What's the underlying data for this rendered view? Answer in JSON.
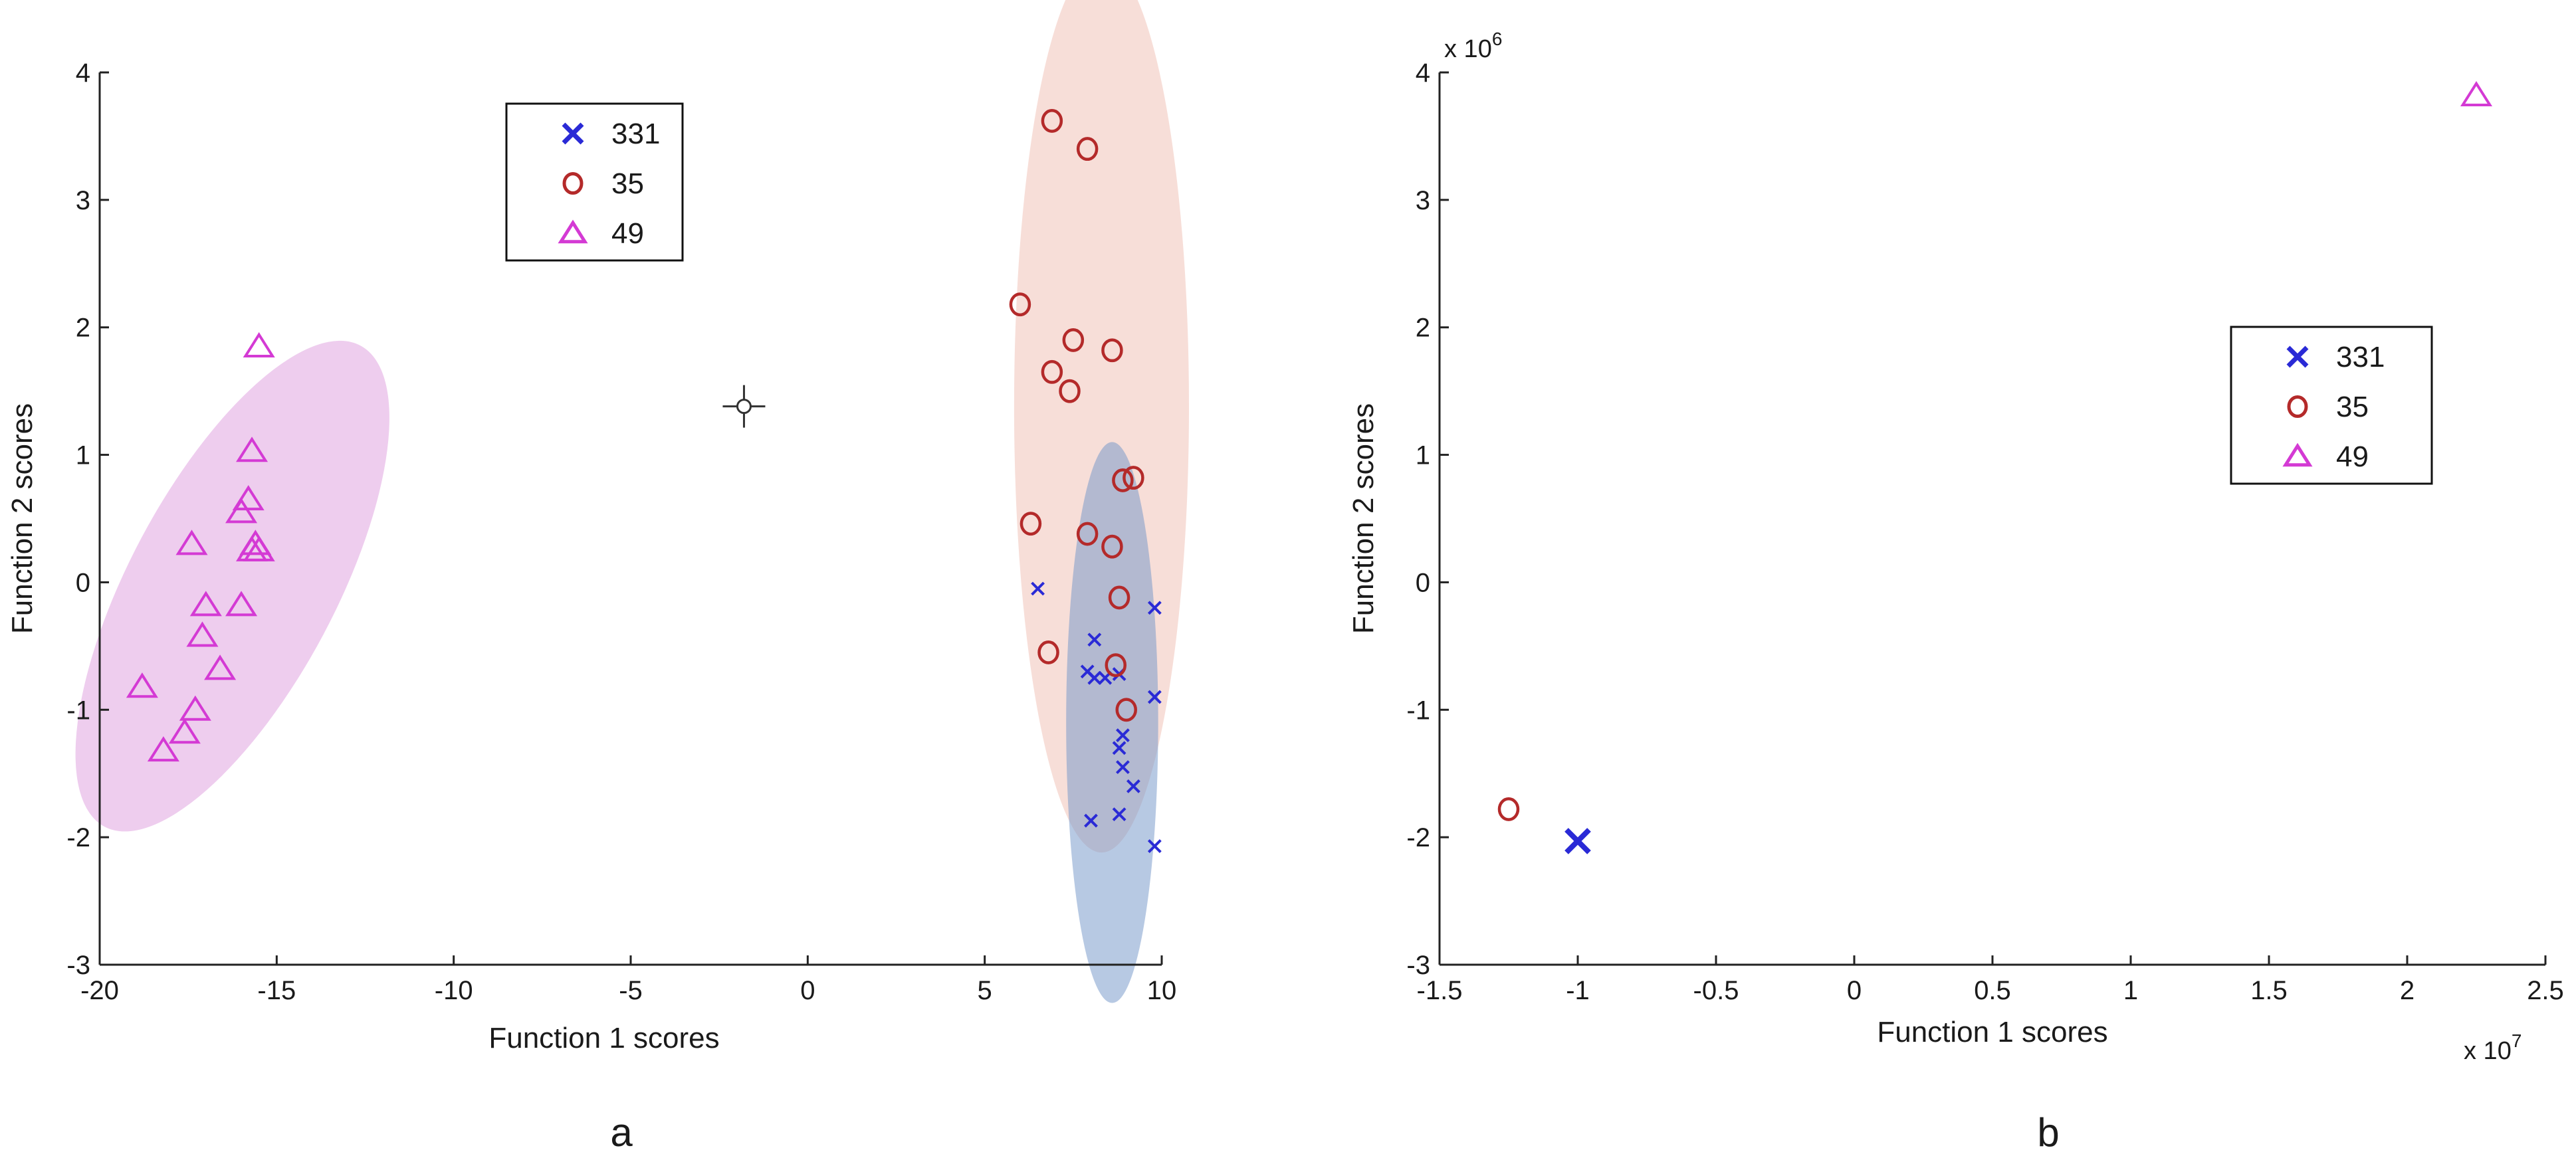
{
  "chart_data": [
    {
      "panel_label": "a",
      "type": "scatter",
      "xlabel": "Function 1 scores",
      "ylabel": "Function 2 scores",
      "xlim": [
        -20,
        10
      ],
      "ylim": [
        -3,
        4
      ],
      "xticks": [
        -20,
        -15,
        -10,
        -5,
        0,
        5,
        10
      ],
      "yticks": [
        -3,
        -2,
        -1,
        0,
        1,
        2,
        3,
        4
      ],
      "grid": false,
      "legend_position": "top-center",
      "series": [
        {
          "name": "331",
          "marker": "x",
          "color": "#2a2ad6",
          "points": [
            [
              6.5,
              -0.05
            ],
            [
              8.1,
              -0.45
            ],
            [
              9.8,
              -0.2
            ],
            [
              7.9,
              -0.7
            ],
            [
              8.1,
              -0.75
            ],
            [
              8.4,
              -0.75
            ],
            [
              8.8,
              -0.72
            ],
            [
              9.8,
              -0.9
            ],
            [
              8.9,
              -1.2
            ],
            [
              8.8,
              -1.3
            ],
            [
              8.9,
              -1.45
            ],
            [
              9.2,
              -1.6
            ],
            [
              8.0,
              -1.87
            ],
            [
              8.8,
              -1.82
            ],
            [
              9.8,
              -2.07
            ]
          ]
        },
        {
          "name": "35",
          "marker": "o",
          "color": "#b42a2a",
          "points": [
            [
              6.9,
              3.62
            ],
            [
              7.9,
              3.4
            ],
            [
              6.0,
              2.18
            ],
            [
              7.5,
              1.9
            ],
            [
              8.6,
              1.82
            ],
            [
              6.9,
              1.65
            ],
            [
              7.4,
              1.5
            ],
            [
              8.9,
              0.8
            ],
            [
              9.2,
              0.82
            ],
            [
              6.3,
              0.46
            ],
            [
              7.9,
              0.38
            ],
            [
              8.6,
              0.28
            ],
            [
              8.8,
              -0.12
            ],
            [
              6.8,
              -0.55
            ],
            [
              8.7,
              -0.65
            ],
            [
              9.0,
              -1.0
            ]
          ]
        },
        {
          "name": "49",
          "marker": "^",
          "color": "#d43ad4",
          "points": [
            [
              -15.5,
              1.85
            ],
            [
              -15.7,
              1.03
            ],
            [
              -15.8,
              0.65
            ],
            [
              -16.0,
              0.55
            ],
            [
              -17.4,
              0.3
            ],
            [
              -15.6,
              0.3
            ],
            [
              -15.7,
              0.25
            ],
            [
              -15.5,
              0.25
            ],
            [
              -17.0,
              -0.18
            ],
            [
              -16.0,
              -0.18
            ],
            [
              -17.1,
              -0.42
            ],
            [
              -16.6,
              -0.68
            ],
            [
              -18.8,
              -0.82
            ],
            [
              -17.3,
              -1.0
            ],
            [
              -17.6,
              -1.18
            ],
            [
              -18.2,
              -1.32
            ]
          ]
        }
      ],
      "ellipses": [
        {
          "group": "49",
          "center": [
            -16.25,
            -0.03
          ],
          "radii": [
            3.0,
            2.1
          ],
          "angle_deg": 62,
          "color": "#cf6fcf",
          "opacity": 0.35
        },
        {
          "group": "35",
          "center": [
            8.3,
            1.38
          ],
          "radii": [
            2.47,
            3.5
          ],
          "angle_deg": 0,
          "color": "#e9a090",
          "opacity": 0.35
        },
        {
          "group": "331",
          "center": [
            8.6,
            -1.1
          ],
          "radii": [
            1.3,
            2.2
          ],
          "angle_deg": 0,
          "color": "#6f94c8",
          "opacity": 0.5
        }
      ],
      "annotations": [
        {
          "type": "crosshair",
          "x": -1.8,
          "y": 1.38
        }
      ]
    },
    {
      "panel_label": "b",
      "type": "scatter",
      "xlabel": "Function 1 scores",
      "ylabel": "Function 2 scores",
      "xlim": [
        -1.5,
        2.5
      ],
      "ylim": [
        -3,
        4
      ],
      "xticks": [
        -1.5,
        -1,
        -0.5,
        0,
        0.5,
        1,
        1.5,
        2,
        2.5
      ],
      "xtick_labels": [
        "-1.5",
        "-1",
        "-0.5",
        "0",
        "0.5",
        "1",
        "1.5",
        "2",
        "2.5"
      ],
      "yticks": [
        -3,
        -2,
        -1,
        0,
        1,
        2,
        3,
        4
      ],
      "x_multiplier_text": "x 10",
      "x_multiplier_exp": "7",
      "y_multiplier_text": "x 10",
      "y_multiplier_exp": "6",
      "grid": false,
      "legend_position": "center-right",
      "series": [
        {
          "name": "331",
          "marker": "x",
          "color": "#2a2ad6",
          "points": [
            [
              -1.0,
              -2.03
            ]
          ]
        },
        {
          "name": "35",
          "marker": "o",
          "color": "#b42a2a",
          "points": [
            [
              -1.25,
              -1.78
            ]
          ]
        },
        {
          "name": "49",
          "marker": "^",
          "color": "#d43ad4",
          "points": [
            [
              2.25,
              3.82
            ]
          ]
        }
      ]
    }
  ]
}
